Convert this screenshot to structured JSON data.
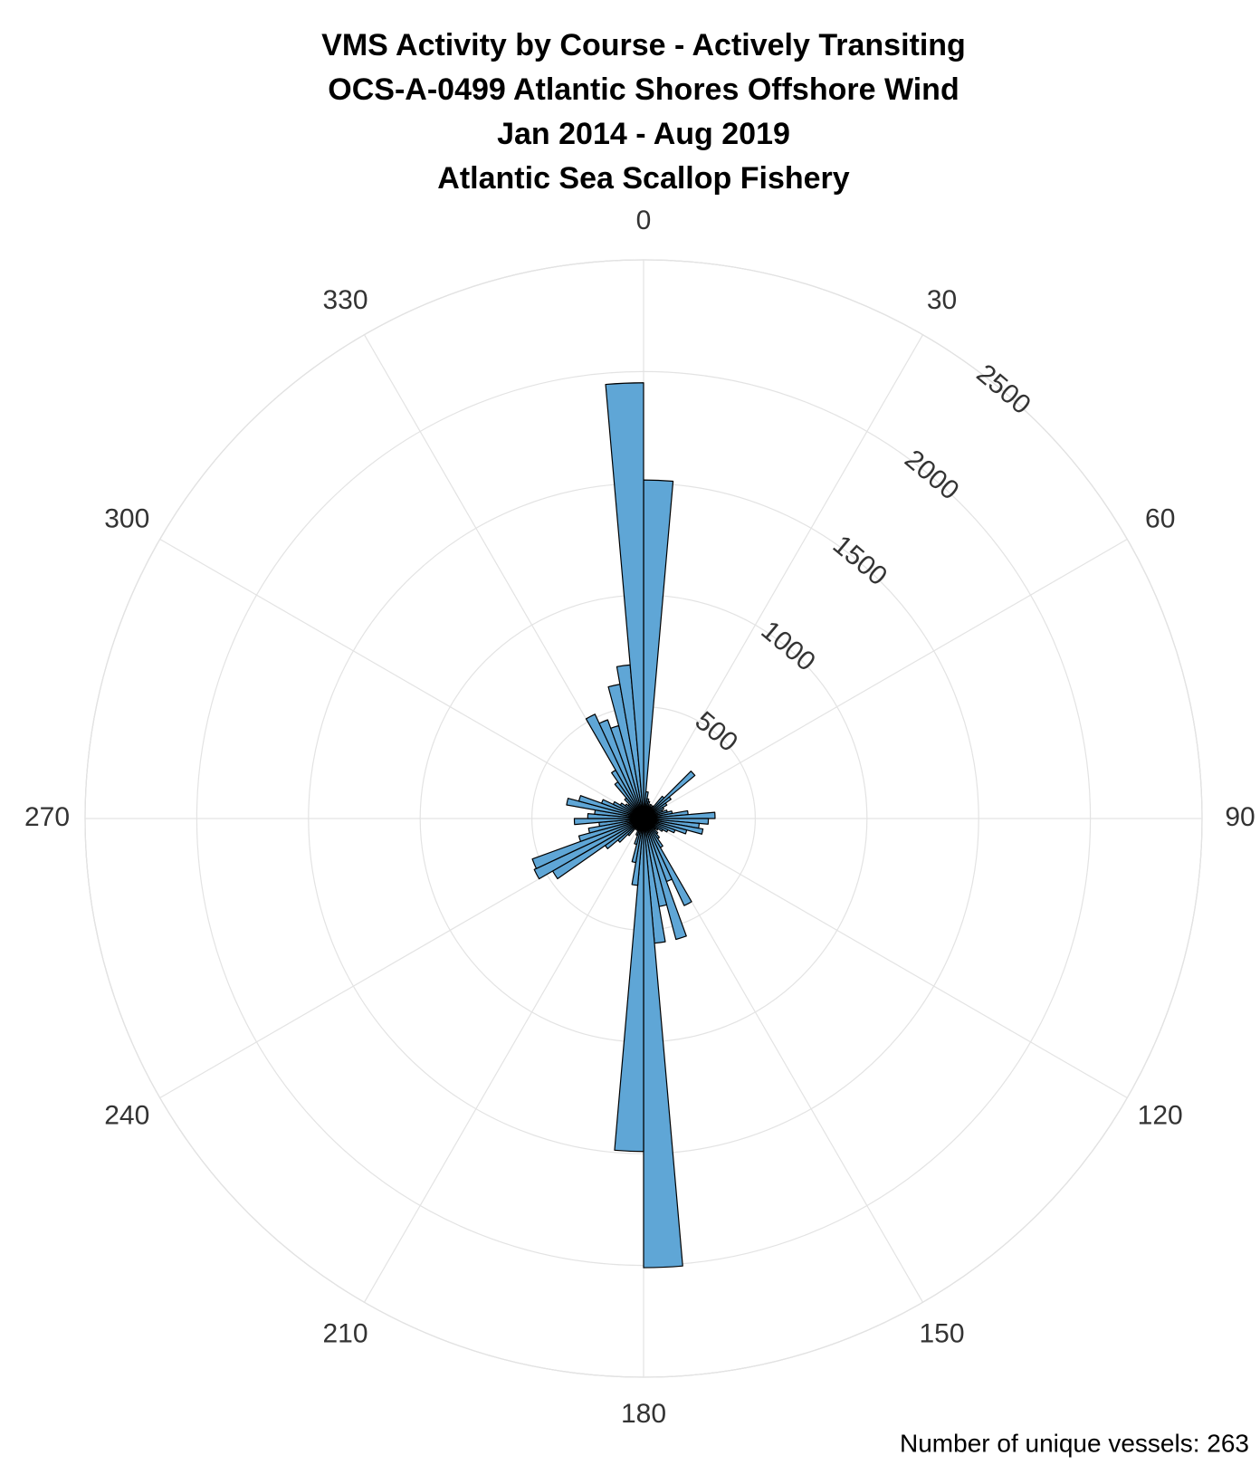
{
  "chart_data": {
    "type": "polar_histogram",
    "title": [
      "VMS Activity by Course - Actively Transiting",
      "OCS-A-0499 Atlantic Shores Offshore Wind",
      "Jan 2014 - Aug 2019",
      "Atlantic Sea Scallop Fishery"
    ],
    "bins": [
      0,
      5,
      10,
      15,
      20,
      25,
      30,
      35,
      40,
      45,
      50,
      55,
      60,
      65,
      70,
      75,
      80,
      85,
      90,
      95,
      100,
      105,
      110,
      115,
      120,
      125,
      130,
      135,
      140,
      145,
      150,
      155,
      160,
      165,
      170,
      175,
      180,
      185,
      190,
      195,
      200,
      205,
      210,
      215,
      220,
      225,
      230,
      235,
      240,
      245,
      250,
      255,
      260,
      265,
      270,
      275,
      280,
      285,
      290,
      295,
      300,
      305,
      310,
      315,
      320,
      325,
      330,
      335,
      340,
      345,
      350,
      355,
      360
    ],
    "values": [
      1515,
      120,
      90,
      80,
      60,
      70,
      60,
      70,
      130,
      300,
      150,
      120,
      100,
      90,
      110,
      130,
      200,
      320,
      290,
      250,
      270,
      200,
      150,
      120,
      100,
      80,
      70,
      90,
      110,
      150,
      430,
      300,
      560,
      400,
      560,
      2010,
      1490,
      300,
      200,
      120,
      80,
      60,
      50,
      60,
      100,
      150,
      210,
      470,
      540,
      530,
      300,
      250,
      200,
      310,
      250,
      220,
      350,
      300,
      200,
      150,
      120,
      100,
      90,
      120,
      200,
      250,
      515,
      470,
      430,
      610,
      690,
      1950
    ],
    "color": "#5fa6d6",
    "rlim": [
      0,
      2500
    ],
    "rticks": [
      500,
      1000,
      1500,
      2000,
      2500
    ],
    "thetaticks": [
      0,
      30,
      60,
      90,
      120,
      150,
      180,
      210,
      240,
      270,
      300,
      330
    ],
    "grid": true,
    "annotation": "Number of unique vessels: 263"
  }
}
